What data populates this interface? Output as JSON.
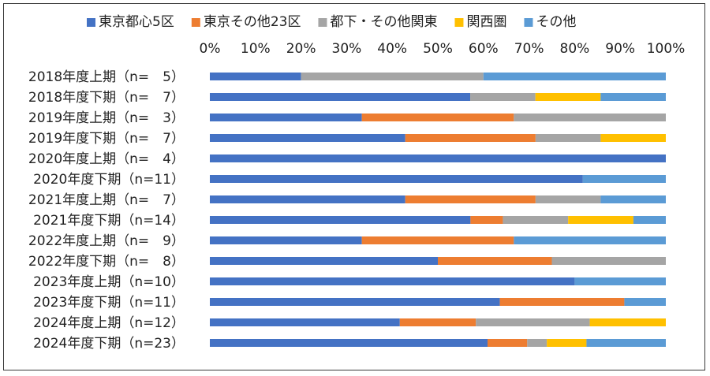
{
  "chart_data": {
    "type": "bar",
    "orientation": "horizontal",
    "stacked": "percent",
    "legend_position": "top",
    "grid": false,
    "xlim": [
      0,
      100
    ],
    "x_ticks": [
      "0%",
      "10%",
      "20%",
      "30%",
      "40%",
      "50%",
      "60%",
      "70%",
      "80%",
      "90%",
      "100%"
    ],
    "x_tick_values": [
      0,
      10,
      20,
      30,
      40,
      50,
      60,
      70,
      80,
      90,
      100
    ],
    "categories": [
      "2018年度上期（n=　5）",
      "2018年度下期（n=　7）",
      "2019年度上期（n=　3）",
      "2019年度下期（n=　7）",
      "2020年度上期（n=　4）",
      "2020年度下期（n=11）",
      "2021年度上期（n=　7）",
      "2021年度下期（n=14）",
      "2022年度上期（n=　9）",
      "2022年度下期（n=　8）",
      "2023年度上期（n=10）",
      "2023年度下期（n=11）",
      "2024年度上期（n=12）",
      "2024年度下期（n=23）"
    ],
    "series": [
      {
        "name": "東京都心5区",
        "color": "#4472C4",
        "values": [
          20,
          57.1,
          33.3,
          42.9,
          100,
          81.8,
          42.9,
          57.1,
          33.3,
          50,
          80,
          63.6,
          41.7,
          60.9
        ]
      },
      {
        "name": "東京その他23区",
        "color": "#ED7D31",
        "values": [
          0,
          0,
          33.3,
          28.6,
          0,
          0,
          28.6,
          7.1,
          33.3,
          25,
          0,
          27.3,
          16.7,
          8.7
        ]
      },
      {
        "name": "都下・その他関東",
        "color": "#A5A5A5",
        "values": [
          40,
          14.3,
          33.3,
          14.3,
          0,
          0,
          14.3,
          14.3,
          0,
          25,
          0,
          0,
          25,
          4.3
        ]
      },
      {
        "name": "関西圏",
        "color": "#FFC000",
        "values": [
          0,
          14.3,
          0,
          14.3,
          0,
          0,
          0,
          14.3,
          0,
          0,
          0,
          0,
          16.7,
          8.7
        ]
      },
      {
        "name": "その他",
        "color": "#5B9BD5",
        "values": [
          40,
          14.3,
          0,
          0,
          0,
          18.2,
          14.3,
          7.1,
          33.3,
          0,
          20,
          9.1,
          0,
          17.4
        ]
      }
    ]
  }
}
